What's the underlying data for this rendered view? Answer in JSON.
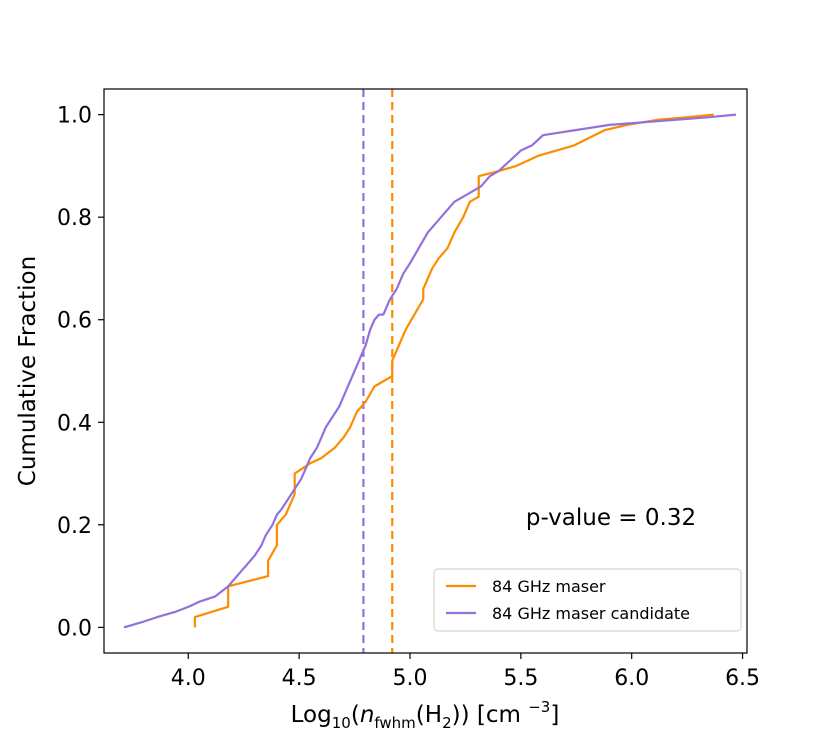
{
  "chart_data": {
    "type": "line",
    "title": "",
    "xlabel_parts": {
      "prefix": "Log",
      "base": "10",
      "open_paren": "(",
      "n_symbol": "n",
      "n_subscript": "fwhm",
      "species_open": "(H",
      "species_subscript": "2",
      "species_close": "))",
      "unit_open": " [cm ",
      "unit_exponent": "−3",
      "unit_close": "]"
    },
    "ylabel": "Cumulative Fraction",
    "xlim": [
      3.62,
      6.52
    ],
    "ylim": [
      -0.05,
      1.05
    ],
    "x_ticks": [
      4.0,
      4.5,
      5.0,
      5.5,
      6.0,
      6.5
    ],
    "x_tick_labels": [
      "4.0",
      "4.5",
      "5.0",
      "5.5",
      "6.0",
      "6.5"
    ],
    "y_ticks": [
      0.0,
      0.2,
      0.4,
      0.6,
      0.8,
      1.0
    ],
    "y_tick_labels": [
      "0.0",
      "0.2",
      "0.4",
      "0.6",
      "0.8",
      "1.0"
    ],
    "annotation": "p-value = 0.32",
    "legend_position": "lower-right",
    "series": [
      {
        "name": "84 GHz maser",
        "color": "#ff8c00",
        "median": 4.92,
        "x": [
          4.03,
          4.03,
          4.18,
          4.18,
          4.36,
          4.36,
          4.4,
          4.4,
          4.44,
          4.48,
          4.48,
          4.55,
          4.6,
          4.66,
          4.7,
          4.73,
          4.76,
          4.8,
          4.84,
          4.88,
          4.92,
          4.92,
          4.95,
          4.98,
          5.02,
          5.06,
          5.06,
          5.1,
          5.13,
          5.17,
          5.2,
          5.24,
          5.27,
          5.31,
          5.31,
          5.4,
          5.48,
          5.58,
          5.74,
          5.88,
          5.98,
          6.12,
          6.25,
          6.37
        ],
        "y": [
          0.0,
          0.02,
          0.04,
          0.08,
          0.1,
          0.13,
          0.16,
          0.2,
          0.22,
          0.26,
          0.3,
          0.32,
          0.33,
          0.35,
          0.37,
          0.39,
          0.42,
          0.44,
          0.47,
          0.48,
          0.49,
          0.52,
          0.55,
          0.58,
          0.61,
          0.64,
          0.66,
          0.7,
          0.72,
          0.74,
          0.77,
          0.8,
          0.83,
          0.84,
          0.88,
          0.89,
          0.9,
          0.92,
          0.94,
          0.97,
          0.98,
          0.99,
          0.995,
          1.0
        ]
      },
      {
        "name": "84 GHz maser candidate",
        "color": "#9370db",
        "median": 4.79,
        "x": [
          3.71,
          3.79,
          3.86,
          3.94,
          4.0,
          4.05,
          4.12,
          4.18,
          4.22,
          4.26,
          4.3,
          4.33,
          4.35,
          4.38,
          4.4,
          4.42,
          4.45,
          4.48,
          4.51,
          4.53,
          4.55,
          4.58,
          4.6,
          4.62,
          4.65,
          4.68,
          4.7,
          4.72,
          4.74,
          4.76,
          4.78,
          4.8,
          4.82,
          4.84,
          4.86,
          4.88,
          4.91,
          4.94,
          4.97,
          5.0,
          5.04,
          5.08,
          5.12,
          5.16,
          5.2,
          5.24,
          5.28,
          5.32,
          5.36,
          5.4,
          5.45,
          5.5,
          5.55,
          5.6,
          5.75,
          5.9,
          6.05,
          6.2,
          6.35,
          6.47
        ],
        "y": [
          0.0,
          0.01,
          0.02,
          0.03,
          0.04,
          0.05,
          0.06,
          0.08,
          0.1,
          0.12,
          0.14,
          0.16,
          0.18,
          0.2,
          0.22,
          0.23,
          0.25,
          0.27,
          0.29,
          0.31,
          0.33,
          0.35,
          0.37,
          0.39,
          0.41,
          0.43,
          0.45,
          0.47,
          0.49,
          0.51,
          0.53,
          0.55,
          0.58,
          0.6,
          0.61,
          0.61,
          0.64,
          0.66,
          0.69,
          0.71,
          0.74,
          0.77,
          0.79,
          0.81,
          0.83,
          0.84,
          0.85,
          0.86,
          0.88,
          0.89,
          0.91,
          0.93,
          0.94,
          0.96,
          0.97,
          0.98,
          0.985,
          0.99,
          0.995,
          1.0
        ]
      }
    ]
  }
}
